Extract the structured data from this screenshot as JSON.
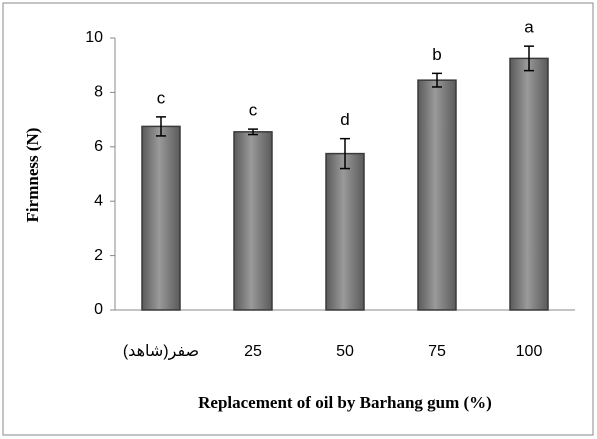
{
  "chart_data": {
    "type": "bar",
    "categories": [
      "(شاهد)صفر",
      "25",
      "50",
      "75",
      "100"
    ],
    "values": [
      6.75,
      6.55,
      5.75,
      8.45,
      9.25
    ],
    "errors": [
      0.35,
      0.1,
      0.55,
      0.25,
      0.45
    ],
    "letters": [
      "c",
      "c",
      "d",
      "b",
      "a"
    ],
    "color": "#808080",
    "ylim": [
      0,
      10
    ],
    "yticks": [
      0,
      2,
      4,
      6,
      8,
      10
    ],
    "ylabel": "Firmness (N)",
    "xlabel": "Replacement of oil by Barhang gum (%)"
  }
}
